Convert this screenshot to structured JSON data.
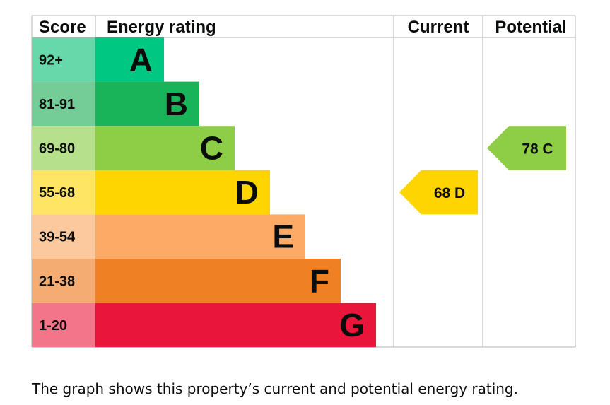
{
  "headers": {
    "score": "Score",
    "rating": "Energy rating",
    "current": "Current",
    "potential": "Potential"
  },
  "chart_data": {
    "type": "bar",
    "categories": [
      "A",
      "B",
      "C",
      "D",
      "E",
      "F",
      "G"
    ],
    "score_ranges": [
      "92+",
      "81-91",
      "69-80",
      "55-68",
      "39-54",
      "21-38",
      "1-20"
    ],
    "band_colors": [
      "#00c781",
      "#19b459",
      "#8dce46",
      "#ffd500",
      "#fcaa65",
      "#ef8023",
      "#e9153b"
    ],
    "score_cell_colors": [
      "#66d8a9",
      "#74cc96",
      "#b6e08c",
      "#ffe563",
      "#fcc99e",
      "#f4ac72",
      "#f27589"
    ],
    "current": {
      "score": 68,
      "band": "D",
      "label": "68 D",
      "color": "#ffd500"
    },
    "potential": {
      "score": 78,
      "band": "C",
      "label": "78 C",
      "color": "#8dce46"
    }
  },
  "caption": "The graph shows this property’s current and potential energy rating."
}
